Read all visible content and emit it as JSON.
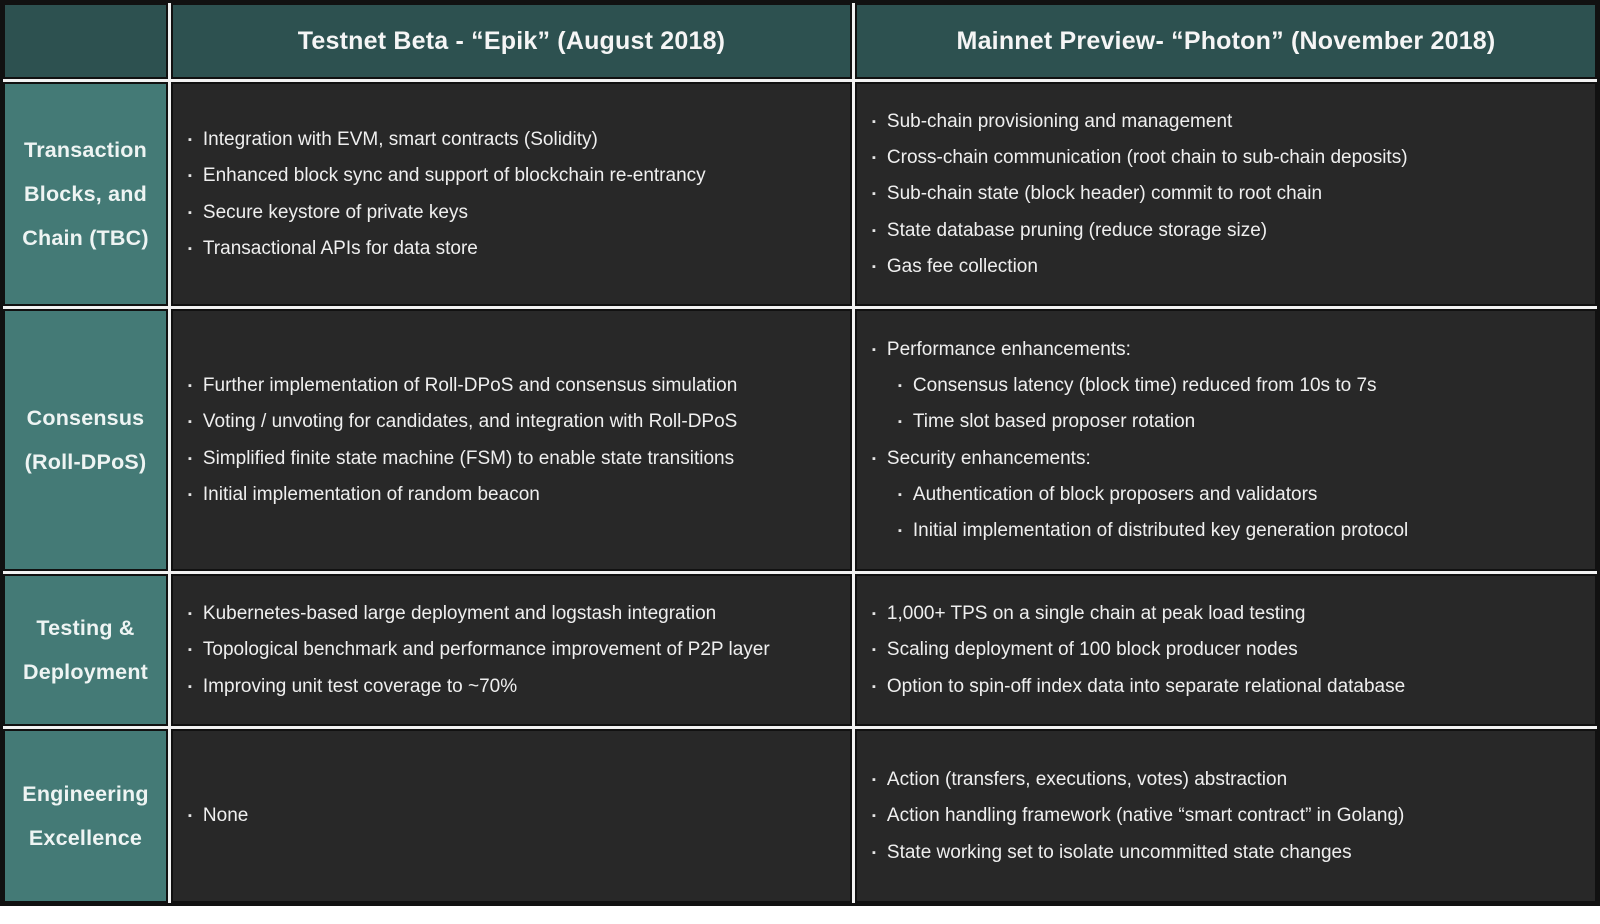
{
  "theme": {
    "header_bg": "#2d5150",
    "label_bg": "#447a76",
    "cell_bg": "#282828",
    "grid_line": "#f2f2f2",
    "text": "#efefef"
  },
  "table": {
    "headers": [
      "",
      "Testnet Beta - “Epik” (August 2018)",
      "Mainnet Preview- “Photon” (November 2018)"
    ],
    "rows": [
      {
        "id": "tbc",
        "label_lines": [
          "Transaction",
          "Blocks, and",
          "Chain (TBC)"
        ],
        "testnet": [
          {
            "text": "Integration with EVM, smart contracts (Solidity)",
            "indent": 0
          },
          {
            "text": "Enhanced block sync and support of blockchain re-entrancy",
            "indent": 0
          },
          {
            "text": "Secure keystore of private keys",
            "indent": 0
          },
          {
            "text": "Transactional APIs for data store",
            "indent": 0
          }
        ],
        "mainnet": [
          {
            "text": "Sub-chain provisioning and management",
            "indent": 0
          },
          {
            "text": "Cross-chain communication (root chain to sub-chain deposits)",
            "indent": 0
          },
          {
            "text": "Sub-chain state (block header) commit to root chain",
            "indent": 0
          },
          {
            "text": "State database pruning (reduce storage size)",
            "indent": 0
          },
          {
            "text": "Gas fee collection",
            "indent": 0
          }
        ]
      },
      {
        "id": "consensus",
        "label_lines": [
          "Consensus",
          "(Roll-DPoS)"
        ],
        "testnet": [
          {
            "text": "Further implementation of Roll-DPoS and consensus simulation",
            "indent": 0
          },
          {
            "text": "Voting / unvoting for candidates, and integration with Roll-DPoS",
            "indent": 0
          },
          {
            "text": "Simplified finite state machine (FSM) to enable state transitions",
            "indent": 0
          },
          {
            "text": "Initial implementation of random beacon",
            "indent": 0
          }
        ],
        "mainnet": [
          {
            "text": "Performance enhancements:",
            "indent": 0
          },
          {
            "text": "Consensus latency (block time) reduced from 10s to 7s",
            "indent": 1
          },
          {
            "text": "Time slot based proposer rotation",
            "indent": 1
          },
          {
            "text": "Security enhancements:",
            "indent": 0
          },
          {
            "text": "Authentication of block proposers and validators",
            "indent": 1
          },
          {
            "text": "Initial implementation of distributed key generation protocol",
            "indent": 1
          }
        ]
      },
      {
        "id": "testing",
        "label_lines": [
          "Testing &",
          "Deployment"
        ],
        "testnet": [
          {
            "text": "Kubernetes-based large deployment and logstash integration",
            "indent": 0
          },
          {
            "text": "Topological benchmark and performance improvement of P2P layer",
            "indent": 0
          },
          {
            "text": "Improving unit test coverage to ~70%",
            "indent": 0
          }
        ],
        "mainnet": [
          {
            "text": "1,000+ TPS on a single chain at peak load testing",
            "indent": 0
          },
          {
            "text": "Scaling deployment of 100 block producer nodes",
            "indent": 0
          },
          {
            "text": "Option to spin-off index data into separate relational database",
            "indent": 0
          }
        ]
      },
      {
        "id": "engineering",
        "label_lines": [
          "Engineering",
          "Excellence"
        ],
        "testnet": [
          {
            "text": "None",
            "indent": 0
          }
        ],
        "mainnet": [
          {
            "text": "Action (transfers, executions, votes) abstraction",
            "indent": 0
          },
          {
            "text": "Action handling framework (native “smart contract” in Golang)",
            "indent": 0
          },
          {
            "text": "State working set to isolate uncommitted state changes",
            "indent": 0
          }
        ]
      }
    ]
  }
}
